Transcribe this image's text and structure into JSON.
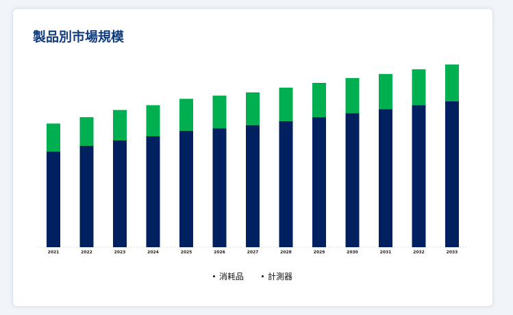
{
  "title": "製品別市場規模",
  "chart_data": {
    "type": "bar",
    "stacked": true,
    "categories": [
      "2021",
      "2022",
      "2023",
      "2024",
      "2025",
      "2026",
      "2027",
      "2028",
      "2029",
      "2030",
      "2031",
      "2032",
      "2033"
    ],
    "series": [
      {
        "name": "消耗品",
        "color": "#002060",
        "values": [
          120,
          127,
          134,
          139,
          146,
          149,
          153,
          158,
          163,
          168,
          173,
          178,
          183
        ]
      },
      {
        "name": "計測器",
        "color": "#00b050",
        "values": [
          35,
          36,
          38,
          39,
          40,
          41,
          41,
          42,
          43,
          44,
          44,
          45,
          46
        ]
      }
    ],
    "ylim": [
      0,
      230
    ],
    "grid": false,
    "y_axis_visible": false,
    "legend_position": "bottom"
  }
}
